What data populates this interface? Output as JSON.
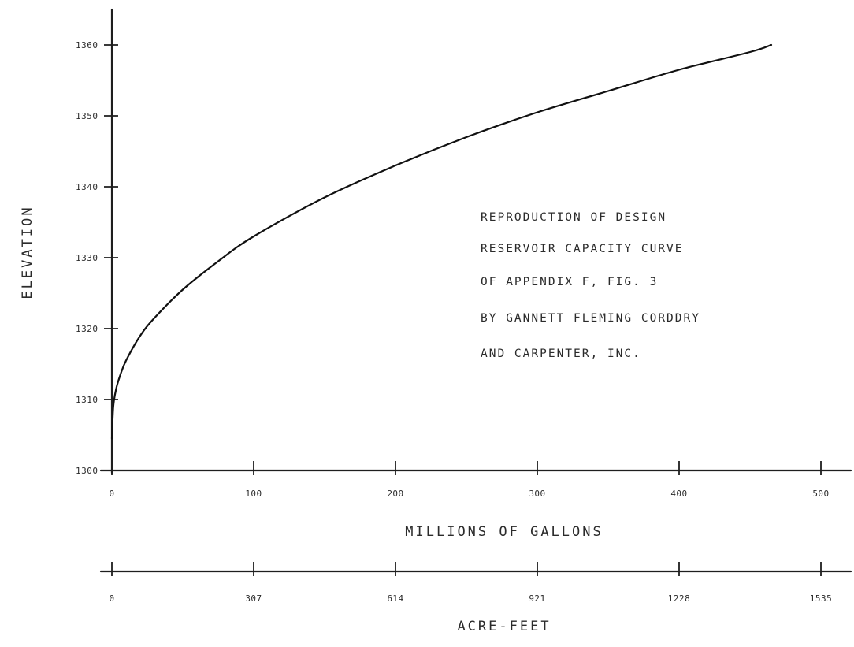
{
  "chart_data": {
    "type": "line",
    "ylabel": "ELEVATION",
    "ylim": [
      1300,
      1360
    ],
    "yticks": [
      "1300",
      "1310",
      "1320",
      "1330",
      "1340",
      "1350",
      "1360"
    ],
    "xlabel": "MILLIONS OF GALLONS",
    "xlim": [
      0,
      500
    ],
    "xticks": [
      "0",
      "100",
      "200",
      "300",
      "400",
      "500"
    ],
    "secondary_xlabel": "ACRE-FEET",
    "secondary_xticks": [
      "0",
      "307",
      "614",
      "921",
      "1228",
      "1535"
    ],
    "grid": false,
    "series": [
      {
        "x": [
          0,
          1,
          3,
          6,
          10,
          20,
          30,
          50,
          75,
          100,
          150,
          200,
          250,
          300,
          350,
          400,
          450,
          465
        ],
        "y": [
          1304.5,
          1309,
          1311.5,
          1313.5,
          1315.5,
          1319,
          1321.5,
          1325.5,
          1329.5,
          1333,
          1338.5,
          1343,
          1347,
          1350.5,
          1353.5,
          1356.5,
          1359,
          1360
        ]
      }
    ],
    "annotation": [
      "REPRODUCTION OF DESIGN",
      "RESERVOIR CAPACITY CURVE",
      "OF APPENDIX F, FIG. 3",
      "BY GANNETT FLEMING CORDDRY",
      "AND CARPENTER, INC."
    ]
  }
}
